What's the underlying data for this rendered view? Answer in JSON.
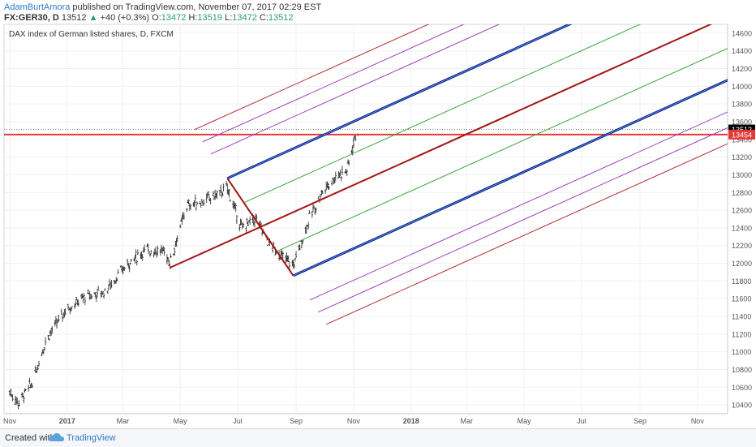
{
  "header": {
    "author": "AdamBurtAmora",
    "published": " published on TradingView.com, November 07, 2017 02:29 EST",
    "symbol": "FX:GER30, D",
    "last": "13512",
    "change": "+40 (+0.3%)",
    "o_label": "O:",
    "o_value": "13472",
    "h_label": "H:",
    "h_value": "13519",
    "l_label": "L:",
    "l_value": "13472",
    "c_label": "C:",
    "c_value": "13512"
  },
  "footer": {
    "created_with": "Created with",
    "brand": "TradingView"
  },
  "chart_data": {
    "type": "candlestick",
    "title": "DAX index of German listed shares, D, FXCM",
    "x_ticks": [
      "Nov",
      "2017",
      "Mar",
      "May",
      "Jul",
      "Sep",
      "Nov",
      "2018",
      "Mar",
      "May",
      "Jul",
      "Sep",
      "Nov"
    ],
    "y_ticks": [
      10400,
      10600,
      10800,
      11000,
      11200,
      11400,
      11600,
      11800,
      12000,
      12200,
      12400,
      12600,
      12800,
      13000,
      13200,
      13400,
      13600,
      13800,
      14000,
      14200,
      14400,
      14600
    ],
    "ylim": [
      10300,
      14700
    ],
    "price_labels": [
      {
        "value": 13512,
        "text": "13512",
        "color": "#000000"
      },
      {
        "value": 13454,
        "text": "13454",
        "color": "#e53935"
      }
    ],
    "horizontal_line": {
      "value": 13454,
      "color": "#e53935"
    },
    "price_path": [
      [
        "2016-11-01",
        10550
      ],
      [
        "2016-11-10",
        10420
      ],
      [
        "2016-11-25",
        10650
      ],
      [
        "2016-12-10",
        11150
      ],
      [
        "2016-12-31",
        11480
      ],
      [
        "2017-01-20",
        11620
      ],
      [
        "2017-02-10",
        11680
      ],
      [
        "2017-03-05",
        11980
      ],
      [
        "2017-03-25",
        12150
      ],
      [
        "2017-04-15",
        12130
      ],
      [
        "2017-04-20",
        12000
      ],
      [
        "2017-05-08",
        12650
      ],
      [
        "2017-05-25",
        12700
      ],
      [
        "2017-06-10",
        12780
      ],
      [
        "2017-06-20",
        12850
      ],
      [
        "2017-07-05",
        12400
      ],
      [
        "2017-07-20",
        12500
      ],
      [
        "2017-08-05",
        12200
      ],
      [
        "2017-08-20",
        12050
      ],
      [
        "2017-08-29",
        11980
      ],
      [
        "2017-09-15",
        12500
      ],
      [
        "2017-09-30",
        12830
      ],
      [
        "2017-10-15",
        13000
      ],
      [
        "2017-10-25",
        13050
      ],
      [
        "2017-11-03",
        13450
      ],
      [
        "2017-11-07",
        13512
      ]
    ],
    "pitchfork": {
      "pivots": [
        {
          "date": "2017-04-20",
          "price": 11950
        },
        {
          "date": "2017-06-20",
          "price": 12960
        },
        {
          "date": "2017-08-29",
          "price": 11860
        }
      ],
      "median_color": "#a31515",
      "outer_color": "#0d1a8c",
      "inner_lines": [
        {
          "offset": 0.5,
          "color": "#4f8fd6"
        },
        {
          "offset": 0.25,
          "color": "#3fa63f"
        },
        {
          "offset": -0.25,
          "color": "#3fa63f"
        },
        {
          "offset": -0.5,
          "color": "#4f8fd6"
        }
      ],
      "outer_lines": [
        {
          "offset": 1.5,
          "color": "#9b3fbf"
        },
        {
          "offset": 1.75,
          "color": "#9b3fbf"
        },
        {
          "offset": 2.0,
          "color": "#b03030"
        },
        {
          "offset": -1.5,
          "color": "#9b3fbf"
        },
        {
          "offset": -1.75,
          "color": "#9b3fbf"
        },
        {
          "offset": -2.0,
          "color": "#b03030"
        }
      ]
    }
  }
}
